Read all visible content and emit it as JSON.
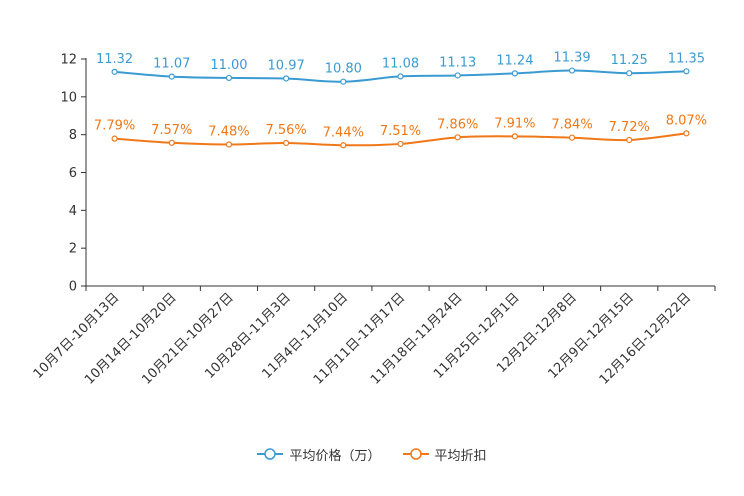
{
  "chart_data": {
    "type": "line",
    "title": "",
    "xlabel": "",
    "ylabel": "",
    "ylim": [
      0,
      12
    ],
    "yticks": [
      0,
      2,
      4,
      6,
      8,
      10,
      12
    ],
    "grid": false,
    "legend_position": "bottom-center",
    "categories": [
      "10月7日-10月13日",
      "10月14日-10月20日",
      "10月21日-10月27日",
      "10月28日-11月3日",
      "11月4日-11月10日",
      "11月11日-11月17日",
      "11月18日-11月24日",
      "11月25日-12月1日",
      "12月2日-12月8日",
      "12月9日-12月15日",
      "12月16日-12月22日"
    ],
    "series": [
      {
        "name": "平均价格（万）",
        "color": "#3a9bd2",
        "values": [
          11.32,
          11.07,
          11.0,
          10.97,
          10.8,
          11.08,
          11.13,
          11.24,
          11.39,
          11.25,
          11.35
        ],
        "labels": [
          "11.32",
          "11.07",
          "11.00",
          "10.97",
          "10.80",
          "11.08",
          "11.13",
          "11.24",
          "11.39",
          "11.25",
          "11.35"
        ]
      },
      {
        "name": "平均折扣",
        "color": "#f07818",
        "values": [
          7.79,
          7.57,
          7.48,
          7.56,
          7.44,
          7.51,
          7.86,
          7.91,
          7.84,
          7.72,
          8.07
        ],
        "labels": [
          "7.79%",
          "7.57%",
          "7.48%",
          "7.56%",
          "7.44%",
          "7.51%",
          "7.86%",
          "7.91%",
          "7.84%",
          "7.72%",
          "8.07%"
        ]
      }
    ]
  }
}
